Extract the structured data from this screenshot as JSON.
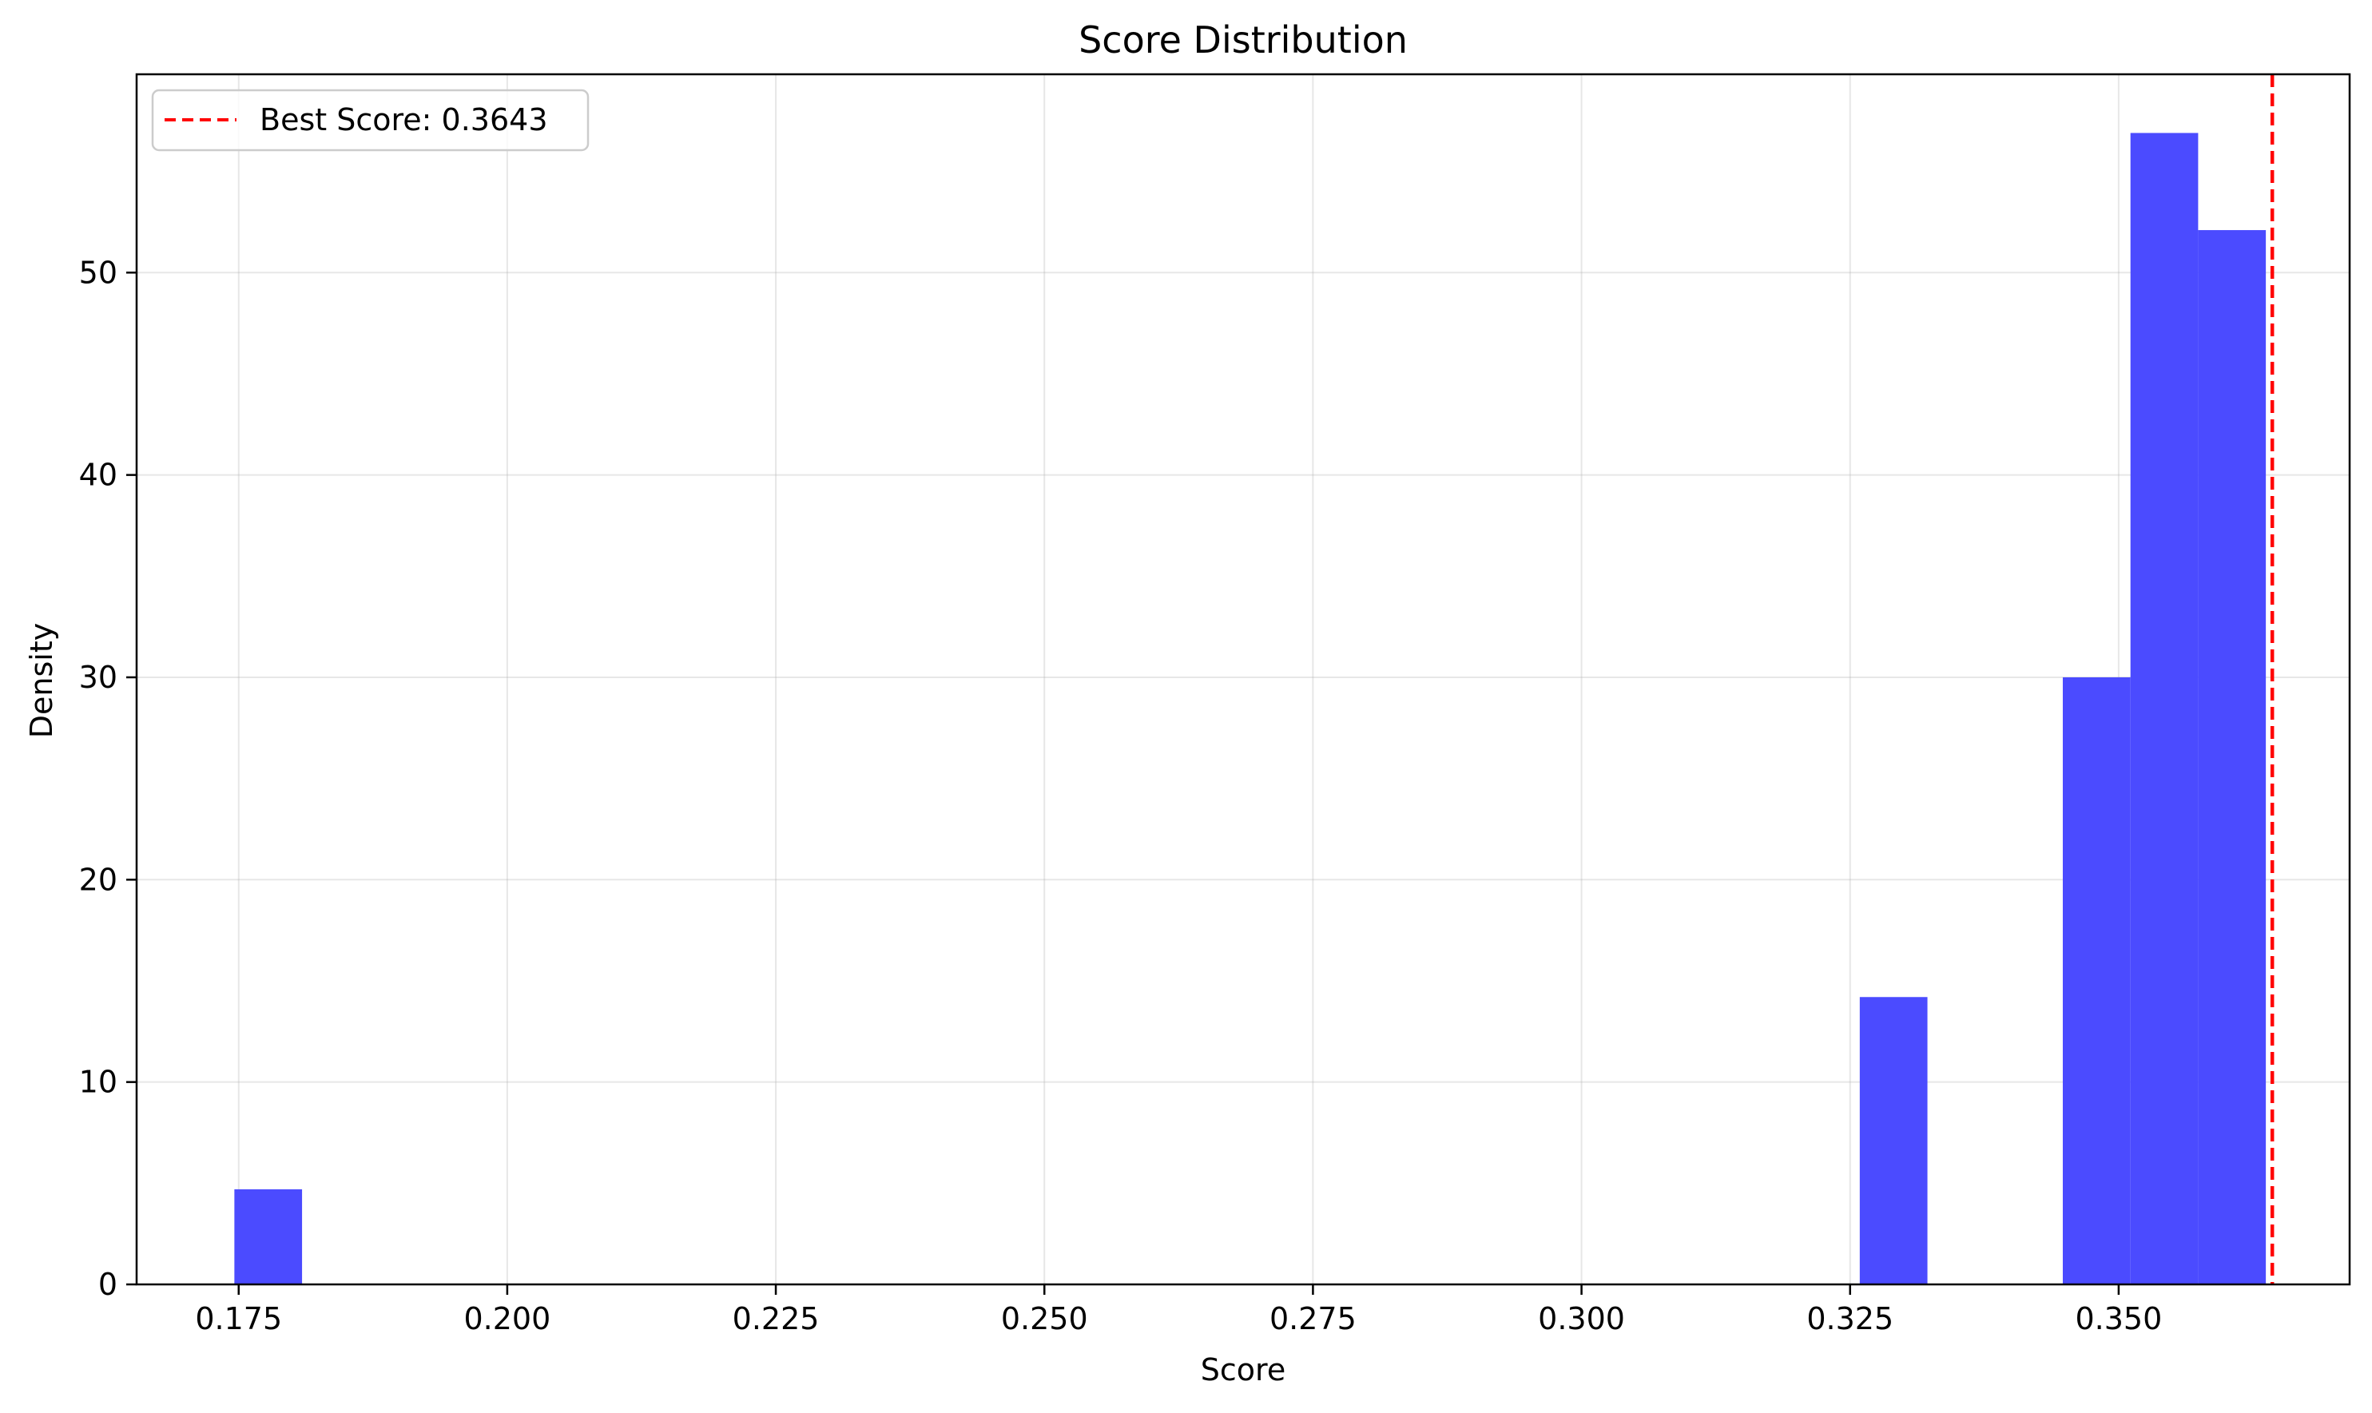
{
  "chart_data": {
    "type": "bar",
    "title": "Score Distribution",
    "xlabel": "Score",
    "ylabel": "Density",
    "xlim": [
      0.1655,
      0.3715
    ],
    "ylim": [
      0,
      59.8
    ],
    "x_ticks": [
      0.175,
      0.2,
      0.225,
      0.25,
      0.275,
      0.3,
      0.325,
      0.35
    ],
    "x_tick_labels": [
      "0.175",
      "0.200",
      "0.225",
      "0.250",
      "0.275",
      "0.300",
      "0.325",
      "0.350"
    ],
    "y_ticks": [
      0,
      10,
      20,
      30,
      40,
      50
    ],
    "y_tick_labels": [
      "0",
      "10",
      "20",
      "30",
      "40",
      "50"
    ],
    "grid": true,
    "bar_color": "#4b4bff",
    "bins": [
      {
        "x0": 0.1746,
        "x1": 0.1809,
        "value": 4.7
      },
      {
        "x0": 0.3259,
        "x1": 0.3322,
        "value": 14.2
      },
      {
        "x0": 0.3448,
        "x1": 0.3511,
        "value": 30.0
      },
      {
        "x0": 0.3511,
        "x1": 0.3574,
        "value": 56.9
      },
      {
        "x0": 0.3574,
        "x1": 0.3637,
        "value": 52.1
      }
    ],
    "reference_line": {
      "x": 0.3643,
      "color": "#ff0000",
      "style": "dashed",
      "label": "Best Score: 0.3643"
    },
    "legend": {
      "placement": "top-left",
      "entries": [
        {
          "label": "Best Score: 0.3643",
          "color": "#ff0000",
          "style": "dashed"
        }
      ]
    }
  }
}
